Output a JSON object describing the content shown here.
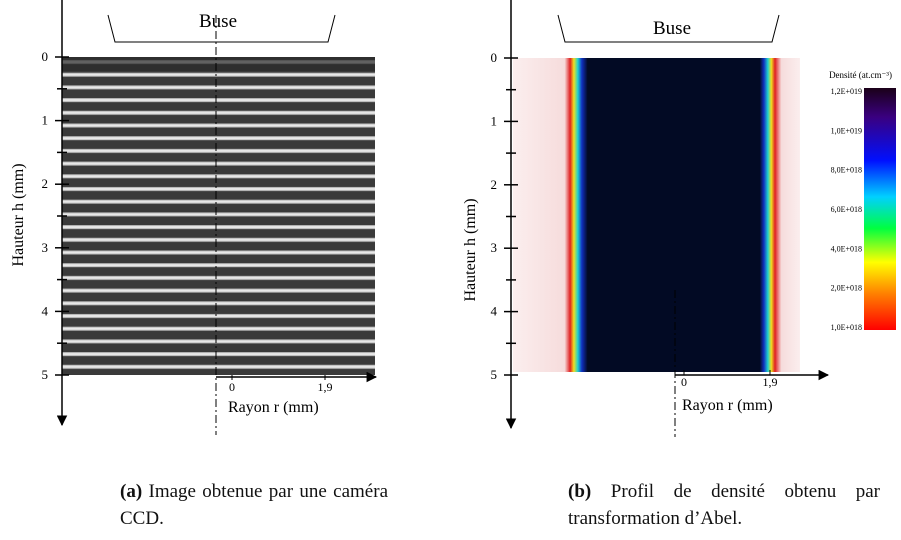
{
  "panels": [
    {
      "nozzle_label": "Buse",
      "y_axis_label": "Hauteur h (mm)",
      "y_ticks": [
        "0",
        "1",
        "2",
        "3",
        "4",
        "5"
      ],
      "x_ticks": [
        "0",
        "1,9"
      ],
      "x_axis_label": "Rayon r (mm)",
      "caption_label": "(a)",
      "caption_text": "Image obtenue par une caméra CCD."
    },
    {
      "nozzle_label": "Buse",
      "y_axis_label": "Hauteur h (mm)",
      "y_ticks": [
        "0",
        "1",
        "2",
        "3",
        "4",
        "5"
      ],
      "x_ticks": [
        "0",
        "1,9"
      ],
      "x_axis_label": "Rayon r (mm)",
      "caption_label": "(b)",
      "caption_text": "Profil de densité obtenu par transformation d’Abel."
    }
  ],
  "colorbar": {
    "title": "Densité (at.cm⁻³)",
    "labels": [
      "1,2E+019",
      "1,0E+019",
      "8,0E+018",
      "6,0E+018",
      "4,0E+018",
      "2,0E+018",
      "1,0E+018"
    ]
  }
}
